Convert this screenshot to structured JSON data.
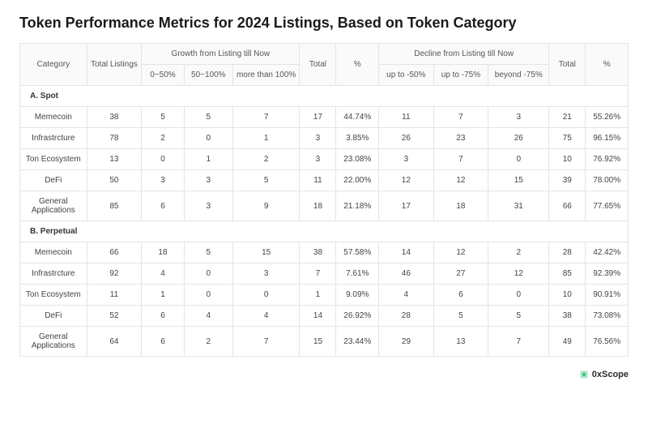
{
  "title": "Token Performance Metrics for 2024 Listings, Based on Token Category",
  "headers": {
    "group_growth": "Growth from Listing till Now",
    "group_decline": "Decline from Listing till Now",
    "category": "Category",
    "total_listings": "Total Listings",
    "g1": "0~50%",
    "g2": "50~100%",
    "g3": "more than 100%",
    "total1": "Total",
    "pct1": "%",
    "d1": "up to -50%",
    "d2": "up to -75%",
    "d3": "beyond -75%",
    "total2": "Total",
    "pct2": "%"
  },
  "sections": [
    {
      "label": "A. Spot",
      "rows": [
        {
          "category": "Memecoin",
          "total_listings": 38,
          "g1": 5,
          "g2": 5,
          "g3": 7,
          "total1": 17,
          "pct1": "44.74%",
          "d1": 11,
          "d2": 7,
          "d3": 3,
          "total2": 21,
          "pct2": "55.26%"
        },
        {
          "category": "Infrastrcture",
          "total_listings": 78,
          "g1": 2,
          "g2": 0,
          "g3": 1,
          "total1": 3,
          "pct1": "3.85%",
          "d1": 26,
          "d2": 23,
          "d3": 26,
          "total2": 75,
          "pct2": "96.15%"
        },
        {
          "category": "Ton Ecosystem",
          "total_listings": 13,
          "g1": 0,
          "g2": 1,
          "g3": 2,
          "total1": 3,
          "pct1": "23.08%",
          "d1": 3,
          "d2": 7,
          "d3": 0,
          "total2": 10,
          "pct2": "76.92%"
        },
        {
          "category": "DeFi",
          "total_listings": 50,
          "g1": 3,
          "g2": 3,
          "g3": 5,
          "total1": 11,
          "pct1": "22.00%",
          "d1": 12,
          "d2": 12,
          "d3": 15,
          "total2": 39,
          "pct2": "78.00%"
        },
        {
          "category": "General Applications",
          "total_listings": 85,
          "g1": 6,
          "g2": 3,
          "g3": 9,
          "total1": 18,
          "pct1": "21.18%",
          "d1": 17,
          "d2": 18,
          "d3": 31,
          "total2": 66,
          "pct2": "77.65%"
        }
      ]
    },
    {
      "label": "B. Perpetual",
      "rows": [
        {
          "category": "Memecoin",
          "total_listings": 66,
          "g1": 18,
          "g2": 5,
          "g3": 15,
          "total1": 38,
          "pct1": "57.58%",
          "d1": 14,
          "d2": 12,
          "d3": 2,
          "total2": 28,
          "pct2": "42.42%"
        },
        {
          "category": "Infrastrcture",
          "total_listings": 92,
          "g1": 4,
          "g2": 0,
          "g3": 3,
          "total1": 7,
          "pct1": "7.61%",
          "d1": 46,
          "d2": 27,
          "d3": 12,
          "total2": 85,
          "pct2": "92.39%"
        },
        {
          "category": "Ton Ecosystem",
          "total_listings": 11,
          "g1": 1,
          "g2": 0,
          "g3": 0,
          "total1": 1,
          "pct1": "9.09%",
          "d1": 4,
          "d2": 6,
          "d3": 0,
          "total2": 10,
          "pct2": "90.91%"
        },
        {
          "category": "DeFi",
          "total_listings": 52,
          "g1": 6,
          "g2": 4,
          "g3": 4,
          "total1": 14,
          "pct1": "26.92%",
          "d1": 28,
          "d2": 5,
          "d3": 5,
          "total2": 38,
          "pct2": "73.08%"
        },
        {
          "category": "General Applications",
          "total_listings": 64,
          "g1": 6,
          "g2": 2,
          "g3": 7,
          "total1": 15,
          "pct1": "23.44%",
          "d1": 29,
          "d2": 13,
          "d3": 7,
          "total2": 49,
          "pct2": "76.56%"
        }
      ]
    }
  ],
  "footer_brand": "0xScope",
  "colors": {
    "border": "#e4e4e4",
    "header_bg": "#fafafa",
    "text": "#444444",
    "title": "#1a1a1a",
    "brand_accent": "#23c275"
  },
  "column_widths_pct": [
    11,
    9,
    7,
    8,
    11,
    6,
    7,
    9,
    9,
    10,
    6,
    7
  ]
}
